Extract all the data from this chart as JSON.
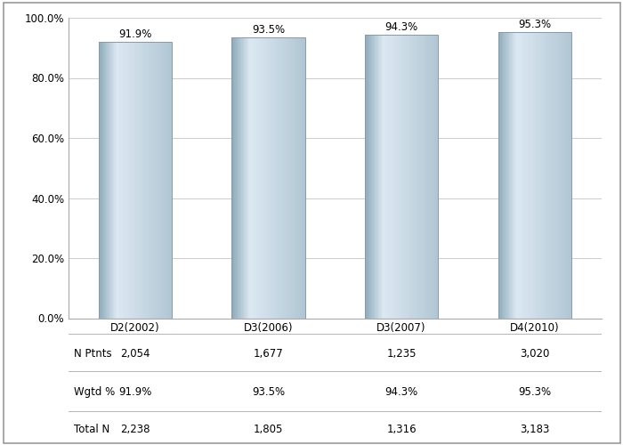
{
  "categories": [
    "D2(2002)",
    "D3(2006)",
    "D3(2007)",
    "D4(2010)"
  ],
  "values": [
    91.9,
    93.5,
    94.3,
    95.3
  ],
  "bar_labels": [
    "91.9%",
    "93.5%",
    "94.3%",
    "95.3%"
  ],
  "n_ptnts": [
    "2,054",
    "1,677",
    "1,235",
    "3,020"
  ],
  "wgtd_pct": [
    "91.9%",
    "93.5%",
    "94.3%",
    "95.3%"
  ],
  "total_n": [
    "2,238",
    "1,805",
    "1,316",
    "3,183"
  ],
  "row_labels": [
    "N Ptnts",
    "Wgtd %",
    "Total N"
  ],
  "ylim": [
    0,
    100
  ],
  "yticks": [
    0,
    20,
    40,
    60,
    80,
    100
  ],
  "ytick_labels": [
    "0.0%",
    "20.0%",
    "40.0%",
    "60.0%",
    "80.0%",
    "100.0%"
  ],
  "bar_edge_color": "#8899aa",
  "background_color": "#ffffff",
  "plot_bg_color": "#ffffff",
  "grid_color": "#cccccc",
  "tick_fontsize": 8.5,
  "table_fontsize": 8.5,
  "bar_label_fontsize": 8.5,
  "bar_width": 0.55,
  "dark_color": [
    0.56,
    0.67,
    0.73
  ],
  "light_color": [
    0.86,
    0.91,
    0.95
  ]
}
